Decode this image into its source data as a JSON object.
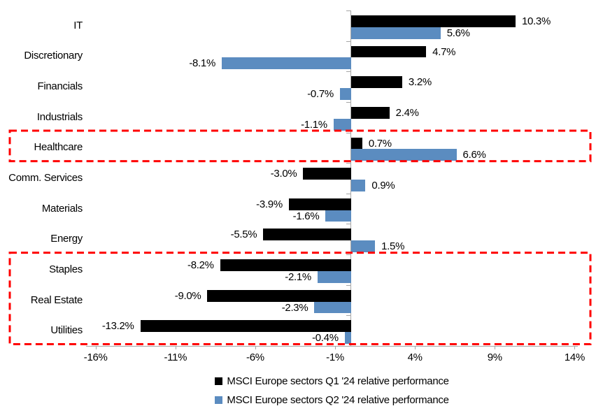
{
  "chart_data": {
    "type": "bar",
    "orientation": "horizontal",
    "title": "",
    "categories": [
      "IT",
      "Discretionary",
      "Financials",
      "Industrials",
      "Healthcare",
      "Comm. Services",
      "Materials",
      "Energy",
      "Staples",
      "Real Estate",
      "Utilities"
    ],
    "series": [
      {
        "name": "MSCI Europe sectors Q1 '24 relative performance",
        "color": "#000000",
        "values": [
          10.3,
          4.7,
          3.2,
          2.4,
          0.7,
          -3.0,
          -3.9,
          -5.5,
          -8.2,
          -9.0,
          -13.2
        ],
        "value_labels": [
          "10.3%",
          "4.7%",
          "3.2%",
          "2.4%",
          "0.7%",
          "-3.0%",
          "-3.9%",
          "-5.5%",
          "-8.2%",
          "-9.0%",
          "-13.2%"
        ]
      },
      {
        "name": "MSCI Europe sectors Q2 '24 relative performance",
        "color": "#5b8cc0",
        "values": [
          5.6,
          -8.1,
          -0.7,
          -1.1,
          6.6,
          0.9,
          -1.6,
          1.5,
          -2.1,
          -2.3,
          -0.4
        ],
        "value_labels": [
          "5.6%",
          "-8.1%",
          "-0.7%",
          "-1.1%",
          "6.6%",
          "0.9%",
          "-1.6%",
          "1.5%",
          "-2.1%",
          "-2.3%",
          "-0.4%"
        ]
      }
    ],
    "x_axis": {
      "tick_labels": [
        "-16%",
        "-11%",
        "-6%",
        "-1%",
        "4%",
        "9%",
        "14%"
      ],
      "tick_values": [
        -16,
        -11,
        -6,
        -1,
        4,
        9,
        14
      ],
      "min": -16.6,
      "max": 14.2,
      "unit": "%"
    },
    "y_axis": {
      "label": ""
    },
    "grid": false,
    "legend_position": "bottom",
    "legend_items": [
      "MSCI Europe sectors Q1 '24 relative performance",
      "MSCI Europe sectors Q2 '24 relative performance"
    ],
    "highlights": [
      {
        "label": "Healthcare",
        "from_row": 4,
        "to_row": 4,
        "color": "#ff0000",
        "style": "dashed"
      },
      {
        "label": "Staples / Real Estate / Utilities",
        "from_row": 8,
        "to_row": 10,
        "color": "#ff0000",
        "style": "dashed"
      }
    ],
    "axis_color": "#a6a6a6"
  }
}
